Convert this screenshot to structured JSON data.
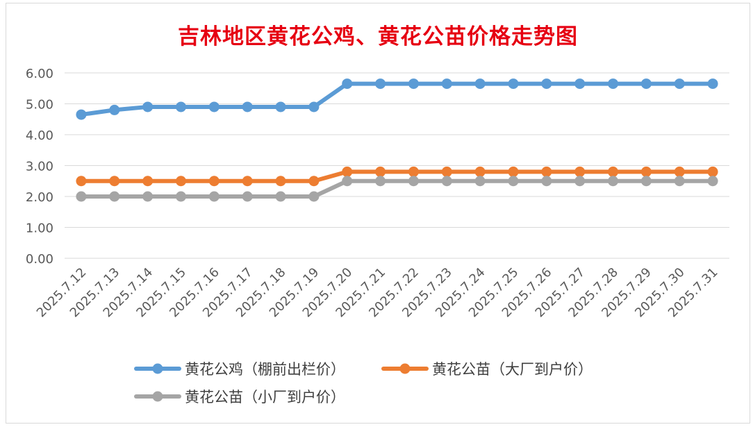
{
  "chart_data": {
    "type": "line",
    "title": "吉林地区黄花公鸡、黄花公苗价格走势图",
    "categories": [
      "2025.7.12",
      "2025.7.13",
      "2025.7.14",
      "2025.7.15",
      "2025.7.16",
      "2025.7.17",
      "2025.7.18",
      "2025.7.19",
      "2025.7.20",
      "2025.7.21",
      "2025.7.22",
      "2025.7.23",
      "2025.7.24",
      "2025.7.25",
      "2025.7.26",
      "2025.7.27",
      "2025.7.28",
      "2025.7.29",
      "2025.7.30",
      "2025.7.31"
    ],
    "series": [
      {
        "name": "黄花公鸡（棚前出栏价）",
        "color": "#5b9bd5",
        "values": [
          4.65,
          4.8,
          4.9,
          4.9,
          4.9,
          4.9,
          4.9,
          4.9,
          5.65,
          5.65,
          5.65,
          5.65,
          5.65,
          5.65,
          5.65,
          5.65,
          5.65,
          5.65,
          5.65,
          5.65
        ]
      },
      {
        "name": "黄花公苗（大厂到户价）",
        "color": "#ed7d31",
        "values": [
          2.5,
          2.5,
          2.5,
          2.5,
          2.5,
          2.5,
          2.5,
          2.5,
          2.8,
          2.8,
          2.8,
          2.8,
          2.8,
          2.8,
          2.8,
          2.8,
          2.8,
          2.8,
          2.8,
          2.8
        ]
      },
      {
        "name": "黄花公苗（小厂到户价）",
        "color": "#a5a5a5",
        "values": [
          2.0,
          2.0,
          2.0,
          2.0,
          2.0,
          2.0,
          2.0,
          2.0,
          2.5,
          2.5,
          2.5,
          2.5,
          2.5,
          2.5,
          2.5,
          2.5,
          2.5,
          2.5,
          2.5,
          2.5
        ]
      }
    ],
    "yticks": [
      "0.00",
      "1.00",
      "2.00",
      "3.00",
      "4.00",
      "5.00",
      "6.00"
    ],
    "ylim": [
      0,
      6
    ],
    "grid": true,
    "legend_position": "bottom",
    "title_color": "#e60012"
  }
}
